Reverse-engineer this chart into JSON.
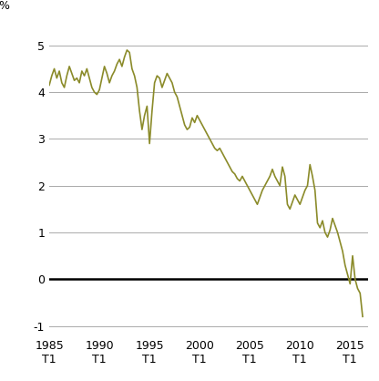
{
  "title": "",
  "percent_label": "%",
  "xlim": [
    1985.0,
    2016.75
  ],
  "ylim": [
    -1.2,
    5.4
  ],
  "yticks": [
    -1,
    0,
    1,
    2,
    3,
    4,
    5
  ],
  "ytick_labels": [
    "-1",
    "0",
    "1",
    "2",
    "3",
    "4",
    "5"
  ],
  "xticks": [
    1985,
    1990,
    1995,
    2000,
    2005,
    2010,
    2015
  ],
  "xtick_labels": [
    "1985\nT1",
    "1990\nT1",
    "1995\nT1",
    "2000\nT1",
    "2005\nT1",
    "2010\nT1",
    "2015\nT1"
  ],
  "line_color": "#8b8b2a",
  "background_color": "#ffffff",
  "grid_color": "#aaaaaa",
  "zero_line_color": "#000000",
  "zero_line_lw": 1.8,
  "grid_lw": 0.7,
  "data": {
    "1985.00": 4.15,
    "1985.25": 4.35,
    "1985.50": 4.5,
    "1985.75": 4.3,
    "1986.00": 4.45,
    "1986.25": 4.2,
    "1986.50": 4.1,
    "1986.75": 4.35,
    "1987.00": 4.55,
    "1987.25": 4.4,
    "1987.50": 4.25,
    "1987.75": 4.3,
    "1988.00": 4.2,
    "1988.25": 4.45,
    "1988.50": 4.35,
    "1988.75": 4.5,
    "1989.00": 4.3,
    "1989.25": 4.1,
    "1989.50": 4.0,
    "1989.75": 3.95,
    "1990.00": 4.05,
    "1990.25": 4.3,
    "1990.50": 4.55,
    "1990.75": 4.4,
    "1991.00": 4.2,
    "1991.25": 4.35,
    "1991.50": 4.45,
    "1991.75": 4.6,
    "1992.00": 4.7,
    "1992.25": 4.55,
    "1992.50": 4.75,
    "1992.75": 4.9,
    "1993.00": 4.85,
    "1993.25": 4.5,
    "1993.50": 4.35,
    "1993.75": 4.1,
    "1994.00": 3.6,
    "1994.25": 3.2,
    "1994.50": 3.5,
    "1994.75": 3.7,
    "1995.00": 2.9,
    "1995.25": 3.6,
    "1995.50": 4.2,
    "1995.75": 4.35,
    "1996.00": 4.3,
    "1996.25": 4.1,
    "1996.50": 4.25,
    "1996.75": 4.4,
    "1997.00": 4.3,
    "1997.25": 4.2,
    "1997.50": 4.0,
    "1997.75": 3.9,
    "1998.00": 3.7,
    "1998.25": 3.5,
    "1998.50": 3.3,
    "1998.75": 3.2,
    "1999.00": 3.25,
    "1999.25": 3.45,
    "1999.50": 3.35,
    "1999.75": 3.5,
    "2000.00": 3.4,
    "2000.25": 3.3,
    "2000.50": 3.2,
    "2000.75": 3.1,
    "2001.00": 3.0,
    "2001.25": 2.9,
    "2001.50": 2.8,
    "2001.75": 2.75,
    "2002.00": 2.8,
    "2002.25": 2.7,
    "2002.50": 2.6,
    "2002.75": 2.5,
    "2003.00": 2.4,
    "2003.25": 2.3,
    "2003.50": 2.25,
    "2003.75": 2.15,
    "2004.00": 2.1,
    "2004.25": 2.2,
    "2004.50": 2.1,
    "2004.75": 2.0,
    "2005.00": 1.9,
    "2005.25": 1.8,
    "2005.50": 1.7,
    "2005.75": 1.6,
    "2006.00": 1.75,
    "2006.25": 1.9,
    "2006.50": 2.0,
    "2006.75": 2.1,
    "2007.00": 2.2,
    "2007.25": 2.35,
    "2007.50": 2.2,
    "2007.75": 2.1,
    "2008.00": 2.0,
    "2008.25": 2.4,
    "2008.50": 2.2,
    "2008.75": 1.6,
    "2009.00": 1.5,
    "2009.25": 1.65,
    "2009.50": 1.8,
    "2009.75": 1.7,
    "2010.00": 1.6,
    "2010.25": 1.75,
    "2010.50": 1.9,
    "2010.75": 2.0,
    "2011.00": 2.45,
    "2011.25": 2.2,
    "2011.50": 1.9,
    "2011.75": 1.2,
    "2012.00": 1.1,
    "2012.25": 1.25,
    "2012.50": 1.0,
    "2012.75": 0.9,
    "2013.00": 1.05,
    "2013.25": 1.3,
    "2013.50": 1.15,
    "2013.75": 1.0,
    "2014.00": 0.8,
    "2014.25": 0.6,
    "2014.50": 0.3,
    "2014.75": 0.1,
    "2015.00": -0.1,
    "2015.25": 0.5,
    "2015.50": 0.0,
    "2015.75": -0.2,
    "2016.00": -0.3,
    "2016.25": -0.8
  }
}
